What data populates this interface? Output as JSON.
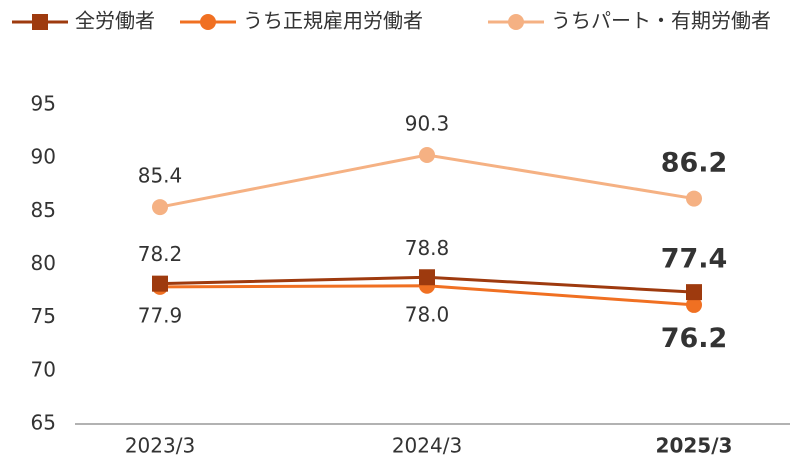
{
  "chart_data": {
    "type": "line",
    "categories": [
      "2023/3",
      "2024/3",
      "2025/3"
    ],
    "series": [
      {
        "name": "全労働者",
        "color": "#9e3a0e",
        "marker": "square",
        "values": [
          78.2,
          78.8,
          77.4
        ],
        "value_labels": [
          "78.2",
          "78.8",
          "77.4"
        ]
      },
      {
        "name": "うち正規雇用労働者",
        "color": "#f07022",
        "marker": "circle",
        "values": [
          77.9,
          78.0,
          76.2
        ],
        "value_labels": [
          "77.9",
          "78.0",
          "76.2"
        ]
      },
      {
        "name": "うちパート・有期労働者",
        "color": "#f5b183",
        "marker": "circle",
        "values": [
          85.4,
          90.3,
          86.2
        ],
        "value_labels": [
          "85.4",
          "90.3",
          "86.2"
        ]
      }
    ],
    "ylim": [
      65,
      95
    ],
    "yticks": [
      65,
      70,
      75,
      80,
      85,
      90,
      95
    ],
    "grid": false
  }
}
